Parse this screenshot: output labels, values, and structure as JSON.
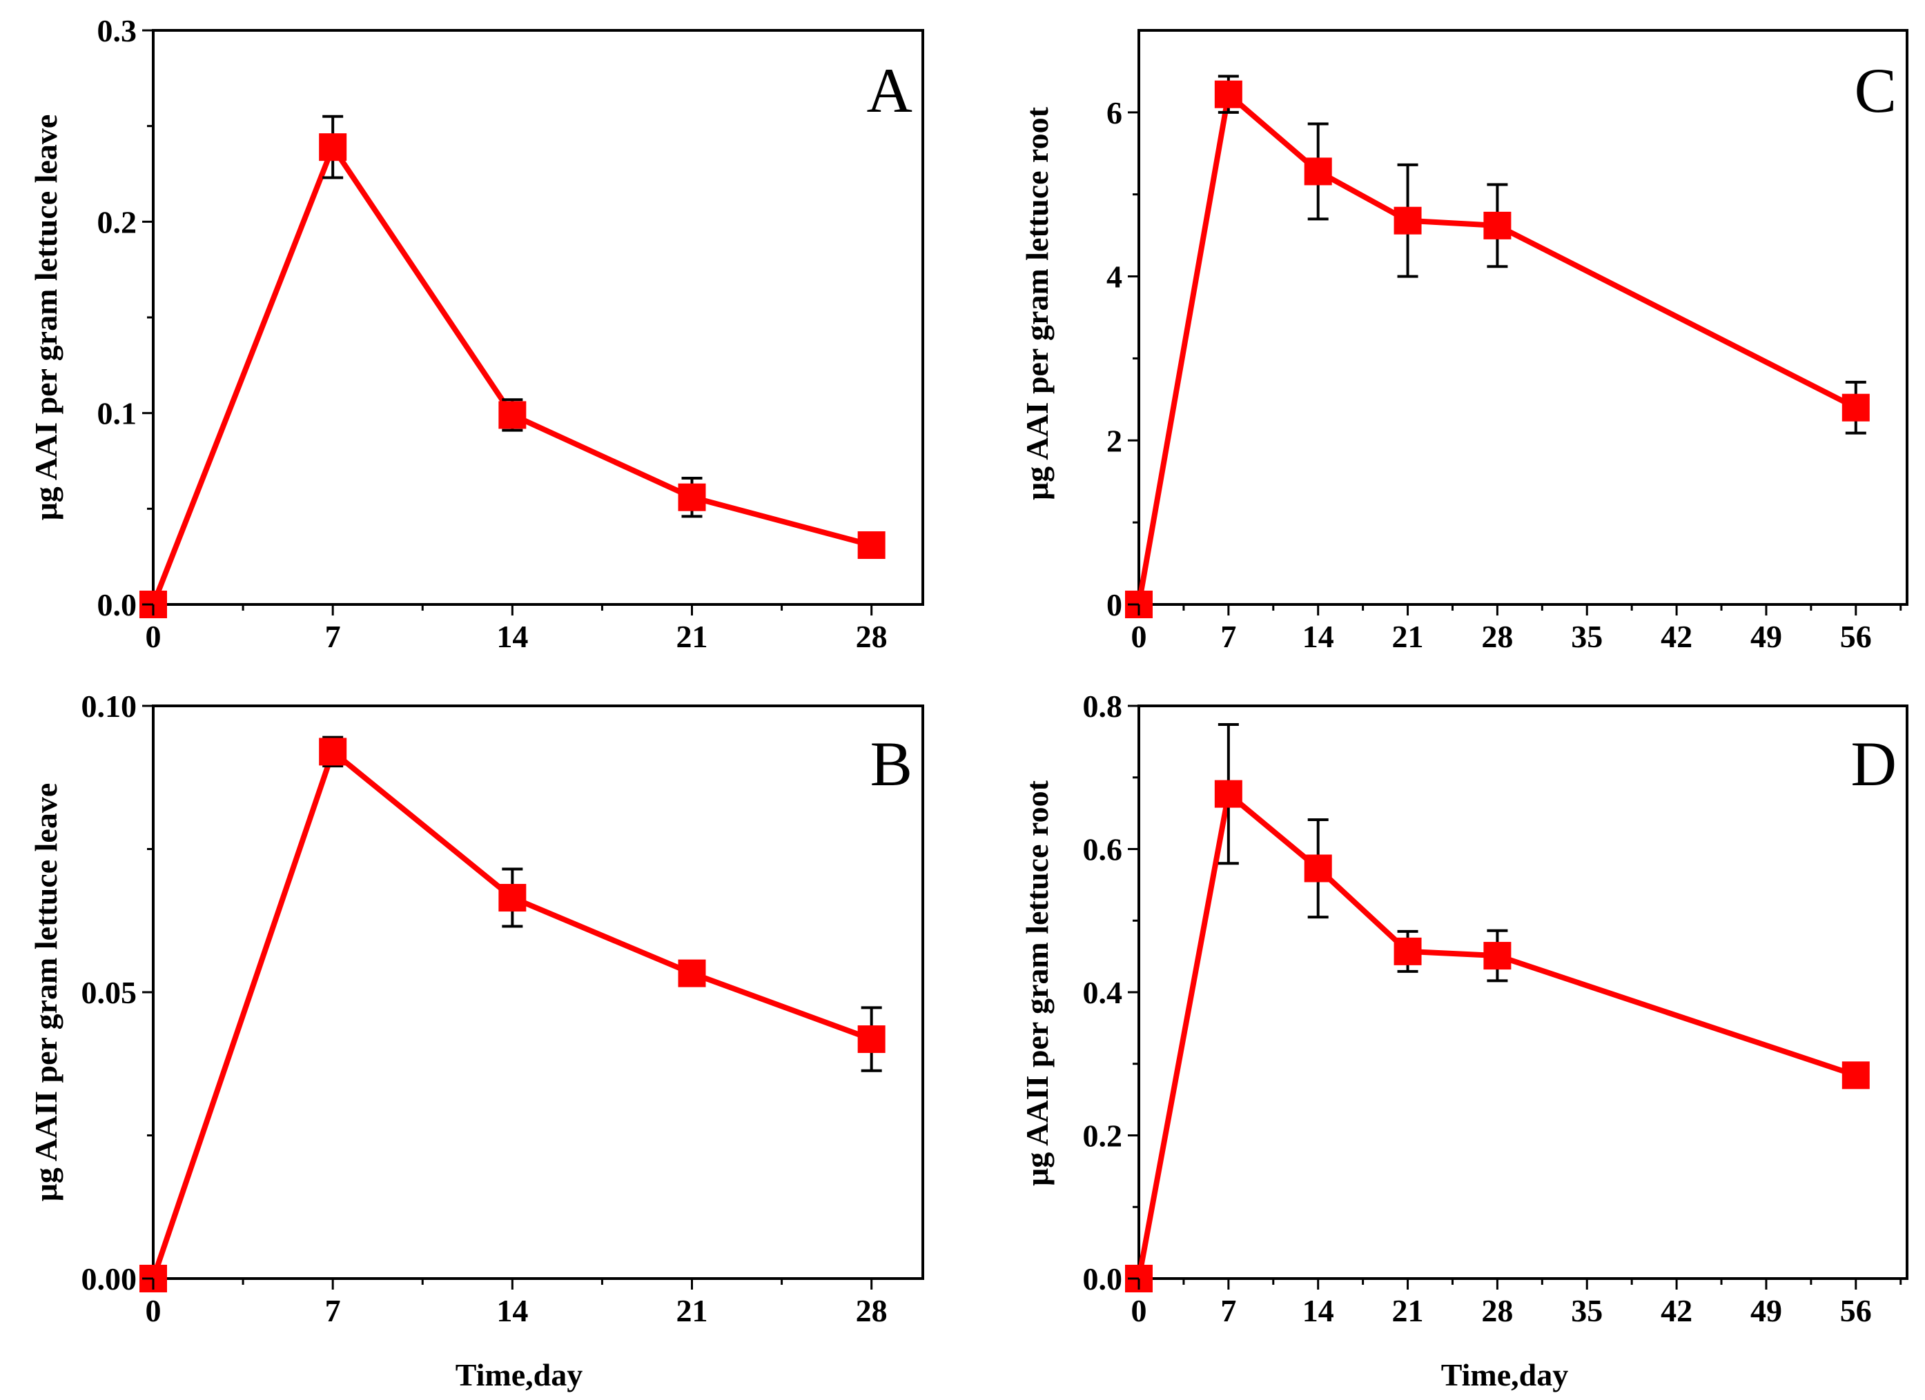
{
  "series_color": "#ff0000",
  "chart_data": [
    {
      "panel": "A",
      "type": "line",
      "xlabel": "",
      "ylabel": "μg AAI per gram lettuce leave",
      "xlim": [
        0,
        30
      ],
      "ylim": [
        0,
        0.3
      ],
      "xticks": [
        0,
        7,
        14,
        21,
        28
      ],
      "xtick_labels": [
        "0",
        "7",
        "14",
        "21",
        "28"
      ],
      "yticks": [
        0,
        0.1,
        0.2,
        0.3
      ],
      "ytick_labels": [
        "0.0",
        "0.1",
        "0.2",
        "0.3"
      ],
      "x": [
        0,
        7,
        14,
        21,
        28
      ],
      "y": [
        0.0,
        0.239,
        0.099,
        0.056,
        0.031
      ],
      "err": [
        0.0,
        0.016,
        0.008,
        0.01,
        0.006
      ]
    },
    {
      "panel": "B",
      "type": "line",
      "xlabel": "Time,day",
      "ylabel": "μg AAII per gram lettuce leave",
      "xlim": [
        0,
        30
      ],
      "ylim": [
        0,
        0.1
      ],
      "xticks": [
        0,
        7,
        14,
        21,
        28
      ],
      "xtick_labels": [
        "0",
        "7",
        "14",
        "21",
        "28"
      ],
      "yticks": [
        0,
        0.05,
        0.1
      ],
      "ytick_labels": [
        "0.00",
        "0.05",
        "0.10"
      ],
      "x": [
        0,
        7,
        14,
        21,
        28
      ],
      "y": [
        0.0,
        0.092,
        0.0665,
        0.0533,
        0.0418
      ],
      "err": [
        0.0,
        0.0025,
        0.005,
        0.0,
        0.0055
      ]
    },
    {
      "panel": "C",
      "type": "line",
      "xlabel": "",
      "ylabel": "μg AAI per gram lettuce root",
      "xlim": [
        0,
        60
      ],
      "ylim": [
        0,
        7
      ],
      "xticks": [
        0,
        7,
        14,
        21,
        28,
        35,
        42,
        49,
        56
      ],
      "xtick_labels": [
        "0",
        "7",
        "14",
        "21",
        "28",
        "35",
        "42",
        "49",
        "56"
      ],
      "yticks": [
        0,
        2,
        4,
        6
      ],
      "ytick_labels": [
        "0",
        "2",
        "4",
        "6"
      ],
      "x": [
        0,
        7,
        14,
        21,
        28,
        56
      ],
      "y": [
        0.0,
        6.22,
        5.28,
        4.68,
        4.62,
        2.4
      ],
      "err": [
        0.0,
        0.22,
        0.58,
        0.68,
        0.5,
        0.31
      ]
    },
    {
      "panel": "D",
      "type": "line",
      "xlabel": "Time,day",
      "ylabel": "μg AAII per gram lettuce root",
      "xlim": [
        0,
        60
      ],
      "ylim": [
        0,
        0.8
      ],
      "xticks": [
        0,
        7,
        14,
        21,
        28,
        35,
        42,
        49,
        56
      ],
      "xtick_labels": [
        "0",
        "7",
        "14",
        "21",
        "28",
        "35",
        "42",
        "49",
        "56"
      ],
      "yticks": [
        0,
        0.2,
        0.4,
        0.6,
        0.8
      ],
      "ytick_labels": [
        "0.0",
        "0.2",
        "0.4",
        "0.6",
        "0.8"
      ],
      "x": [
        0,
        7,
        14,
        21,
        28,
        56
      ],
      "y": [
        0.0,
        0.677,
        0.573,
        0.457,
        0.451,
        0.284
      ],
      "err": [
        0.0,
        0.097,
        0.068,
        0.028,
        0.035,
        0.012
      ]
    }
  ]
}
